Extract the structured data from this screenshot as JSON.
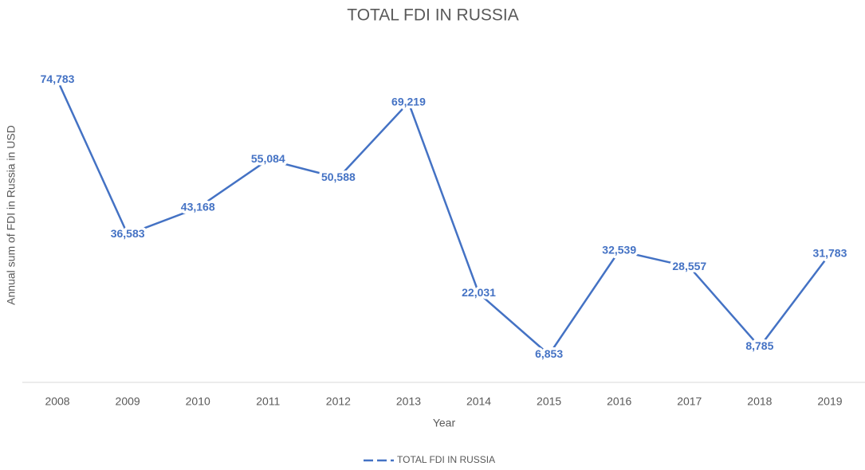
{
  "chart_data": {
    "type": "line",
    "title": "TOTAL FDI IN RUSSIA",
    "x_label": "Year",
    "y_label": "Annual sum of FDI in Russia in USD",
    "categories": [
      "2008",
      "2009",
      "2010",
      "2011",
      "2012",
      "2013",
      "2014",
      "2015",
      "2016",
      "2017",
      "2018",
      "2019"
    ],
    "series": [
      {
        "name": "TOTAL FDI IN RUSSIA",
        "color": "#4472c4",
        "values": [
          74783,
          36583,
          43168,
          55084,
          50588,
          69219,
          22031,
          6853,
          32539,
          28557,
          8785,
          31783
        ],
        "value_labels": [
          "74,783",
          "36,583",
          "43,168",
          "55,084",
          "50,588",
          "69,219",
          "22,031",
          "6,853",
          "32,539",
          "28,557",
          "8,785",
          "31,783"
        ]
      }
    ],
    "ylim": [
      0,
      80000
    ],
    "legend": "bottom"
  }
}
